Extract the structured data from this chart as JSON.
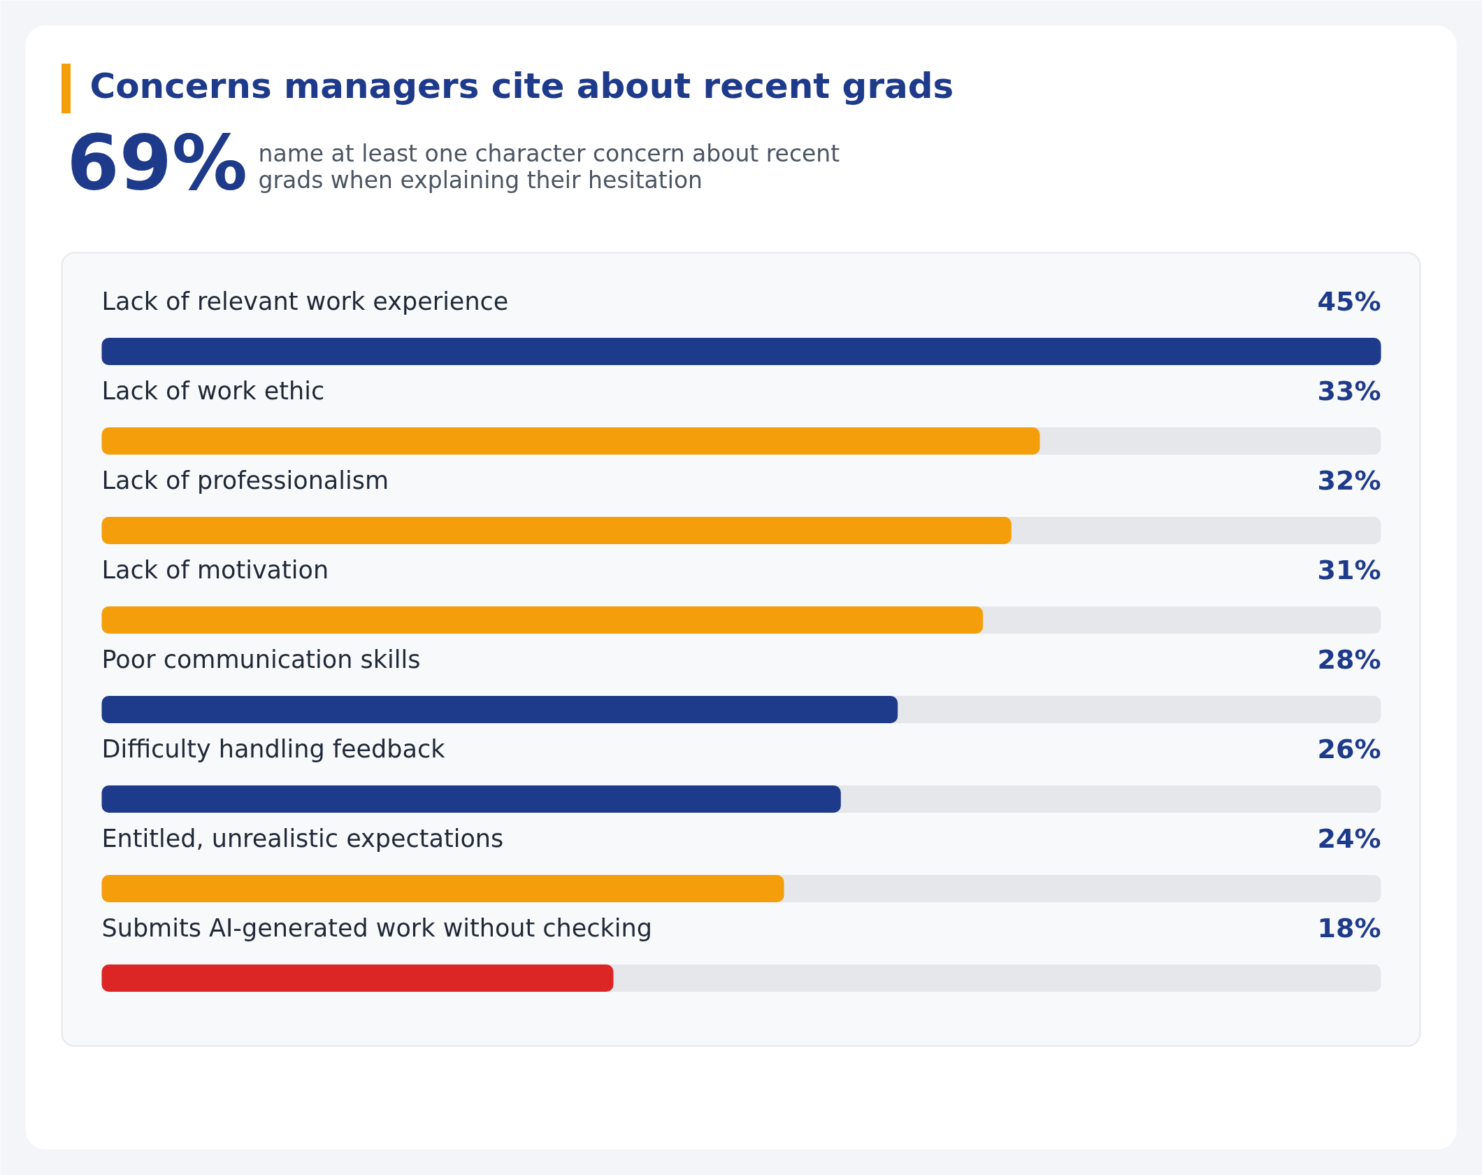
{
  "chart_data": {
    "type": "bar",
    "orientation": "horizontal",
    "title": "Concerns managers cite about recent grads",
    "subtitle": "name at least one character concern about recent grads when explaining their hesitation",
    "annotations": [
      "69%"
    ],
    "categories": [
      "Lack of relevant work experience",
      "Lack of work ethic",
      "Lack of professionalism",
      "Lack of motivation",
      "Poor communication skills",
      "Difficulty handling feedback",
      "Entitled, unrealistic expectations",
      "Submits AI-generated work without checking"
    ],
    "values": [
      45,
      33,
      32,
      31,
      28,
      26,
      24,
      18
    ],
    "value_labels": [
      "45%",
      "33%",
      "32%",
      "31%",
      "28%",
      "26%",
      "24%",
      "18%"
    ],
    "colors": [
      "#1e3a8a",
      "#f59e0b",
      "#f59e0b",
      "#f59e0b",
      "#1e3a8a",
      "#1e3a8a",
      "#f59e0b",
      "#dc2626"
    ],
    "xlim": [
      0,
      45
    ],
    "tick_labels": "y"
  }
}
